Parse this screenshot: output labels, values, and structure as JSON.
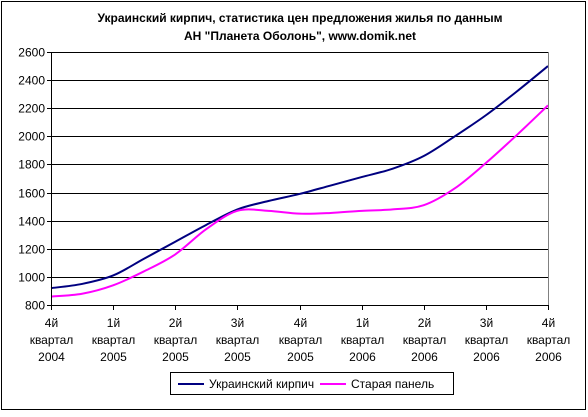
{
  "chart_data": {
    "type": "line",
    "title": [
      "Украинский кирпич, статистика цен предложения жилья по данным",
      "АН \"Планета Оболонь\", www.domik.net"
    ],
    "xlabel": "",
    "ylabel": "",
    "ylim": [
      800,
      2600
    ],
    "ytick_step": 200,
    "grid": true,
    "legend_position": "bottom",
    "categories": [
      [
        "4й",
        "квартал",
        "2004"
      ],
      [
        "1й",
        "квартал",
        "2005"
      ],
      [
        "2й",
        "квартал",
        "2005"
      ],
      [
        "3й",
        "квартал",
        "2005"
      ],
      [
        "4й",
        "квартал",
        "2005"
      ],
      [
        "1й",
        "квартал",
        "2006"
      ],
      [
        "2й",
        "квартал",
        "2006"
      ],
      [
        "3й",
        "квартал",
        "2006"
      ],
      [
        "4й",
        "квартал",
        "2006"
      ]
    ],
    "series": [
      {
        "name": "Украинский кирпич",
        "color": "#000080",
        "x": [
          0,
          0.5,
          1,
          1.5,
          2,
          2.5,
          3,
          3.5,
          4,
          4.5,
          5,
          5.5,
          6,
          6.5,
          7,
          7.5,
          8
        ],
        "values": [
          920,
          950,
          1010,
          1130,
          1250,
          1370,
          1480,
          1540,
          1590,
          1650,
          1710,
          1770,
          1860,
          2000,
          2150,
          2320,
          2500
        ]
      },
      {
        "name": "Старая панель",
        "color": "#ff00ff",
        "x": [
          0,
          0.5,
          1,
          1.5,
          2,
          2.5,
          3,
          3.5,
          4,
          4.5,
          5,
          5.5,
          6,
          6.5,
          7,
          7.5,
          8
        ],
        "values": [
          860,
          880,
          940,
          1040,
          1160,
          1340,
          1470,
          1470,
          1450,
          1455,
          1470,
          1480,
          1510,
          1630,
          1810,
          2010,
          2220
        ]
      }
    ]
  }
}
